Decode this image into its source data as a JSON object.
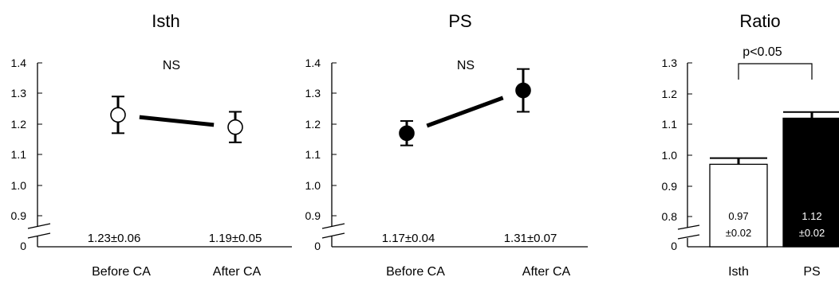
{
  "chart_data": [
    {
      "type": "line",
      "title": "Isth",
      "categories": [
        "Before CA",
        "After CA"
      ],
      "series": [
        {
          "values": [
            1.23,
            1.19
          ],
          "errors": [
            0.06,
            0.05
          ],
          "marker": "open-circle"
        }
      ],
      "value_labels": [
        "1.23±0.06",
        "1.19±0.05"
      ],
      "annotation": "NS",
      "yticks": [
        "0",
        "0.9",
        "1.0",
        "1.1",
        "1.2",
        "1.3",
        "1.4"
      ],
      "ylim": [
        0.9,
        1.4
      ],
      "axis_break": true
    },
    {
      "type": "line",
      "title": "PS",
      "categories": [
        "Before CA",
        "After CA"
      ],
      "series": [
        {
          "values": [
            1.17,
            1.31
          ],
          "errors": [
            0.04,
            0.07
          ],
          "marker": "filled-circle"
        }
      ],
      "value_labels": [
        "1.17±0.04",
        "1.31±0.07"
      ],
      "annotation": "NS",
      "yticks": [
        "0",
        "0.9",
        "1.0",
        "1.1",
        "1.2",
        "1.3",
        "1.4"
      ],
      "ylim": [
        0.9,
        1.4
      ],
      "axis_break": true
    },
    {
      "type": "bar",
      "title": "Ratio",
      "categories": [
        "Isth",
        "PS"
      ],
      "values": [
        0.97,
        1.12
      ],
      "errors": [
        0.02,
        0.02
      ],
      "bar_fills": [
        "#ffffff",
        "#000000"
      ],
      "value_labels": [
        [
          "0.97",
          "±0.02"
        ],
        [
          "1.12",
          "±0.02"
        ]
      ],
      "significance": "p<0.05",
      "yticks": [
        "0",
        "0.8",
        "0.9",
        "1.0",
        "1.1",
        "1.2",
        "1.3"
      ],
      "ylim": [
        0.8,
        1.3
      ],
      "axis_break": true
    }
  ]
}
